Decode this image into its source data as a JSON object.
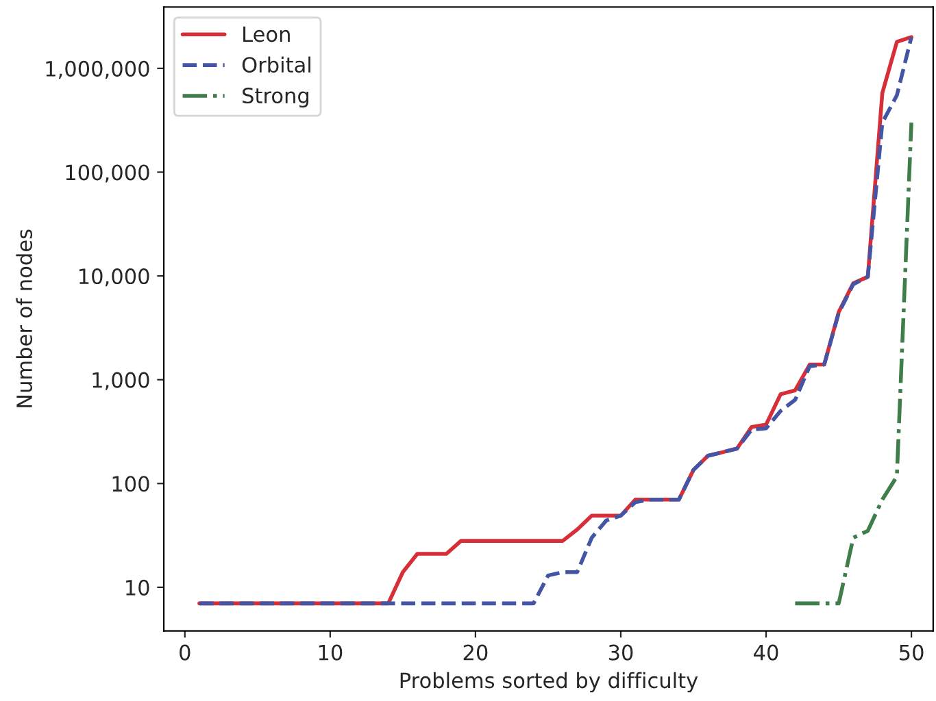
{
  "chart_data": {
    "type": "line",
    "xlabel": "Problems sorted by difficulty",
    "ylabel": "Number of nodes",
    "log": "y",
    "x": [
      1,
      2,
      3,
      4,
      5,
      6,
      7,
      8,
      9,
      10,
      11,
      12,
      13,
      14,
      15,
      16,
      17,
      18,
      19,
      20,
      21,
      22,
      23,
      24,
      25,
      26,
      27,
      28,
      29,
      30,
      31,
      32,
      33,
      34,
      35,
      36,
      37,
      38,
      39,
      40,
      41,
      42,
      43,
      44,
      45,
      46,
      47,
      48,
      49,
      50
    ],
    "series": [
      {
        "name": "Leon",
        "color": "#d62f37",
        "line_style": "solid",
        "values": [
          7,
          7,
          7,
          7,
          7,
          7,
          7,
          7,
          7,
          7,
          7,
          7,
          7,
          7,
          14,
          21,
          21,
          21,
          28,
          28,
          28,
          28,
          28,
          28,
          28,
          28,
          36,
          49,
          49,
          49,
          70,
          70,
          70,
          70,
          135,
          185,
          200,
          217,
          350,
          370,
          725,
          790,
          1400,
          1400,
          4500,
          8500,
          9800,
          580000,
          1800000,
          2000000
        ]
      },
      {
        "name": "Orbital",
        "color": "#4455a6",
        "line_style": "dashed",
        "values": [
          7,
          7,
          7,
          7,
          7,
          7,
          7,
          7,
          7,
          7,
          7,
          7,
          7,
          7,
          7,
          7,
          7,
          7,
          7,
          7,
          7,
          7,
          7,
          7,
          13,
          14,
          14,
          30,
          44,
          49,
          66,
          70,
          70,
          70,
          135,
          185,
          200,
          217,
          330,
          340,
          500,
          640,
          1350,
          1400,
          4400,
          8300,
          9800,
          300000,
          550000,
          2000000
        ]
      },
      {
        "name": "Strong",
        "color": "#3f7d4a",
        "line_style": "dashdot",
        "values": [
          null,
          null,
          null,
          null,
          null,
          null,
          null,
          null,
          null,
          null,
          null,
          null,
          null,
          null,
          null,
          null,
          null,
          null,
          null,
          null,
          null,
          null,
          null,
          null,
          null,
          null,
          null,
          null,
          null,
          null,
          null,
          null,
          null,
          null,
          null,
          null,
          null,
          null,
          null,
          null,
          null,
          7,
          7,
          7,
          7,
          30,
          35,
          70,
          117,
          300000
        ]
      }
    ],
    "xlim": [
      -1.45,
      51.5
    ],
    "xticks": [
      0,
      10,
      20,
      30,
      40,
      50
    ],
    "ylim": [
      3.8,
      3900000
    ],
    "yticks": [
      {
        "value": 10,
        "label": "10"
      },
      {
        "value": 100,
        "label": "100"
      },
      {
        "value": 1000,
        "label": "1,000"
      },
      {
        "value": 10000,
        "label": "10,000"
      },
      {
        "value": 100000,
        "label": "100,000"
      },
      {
        "value": 1000000,
        "label": "1,000,000"
      }
    ],
    "grid": false,
    "legend": "top left"
  }
}
